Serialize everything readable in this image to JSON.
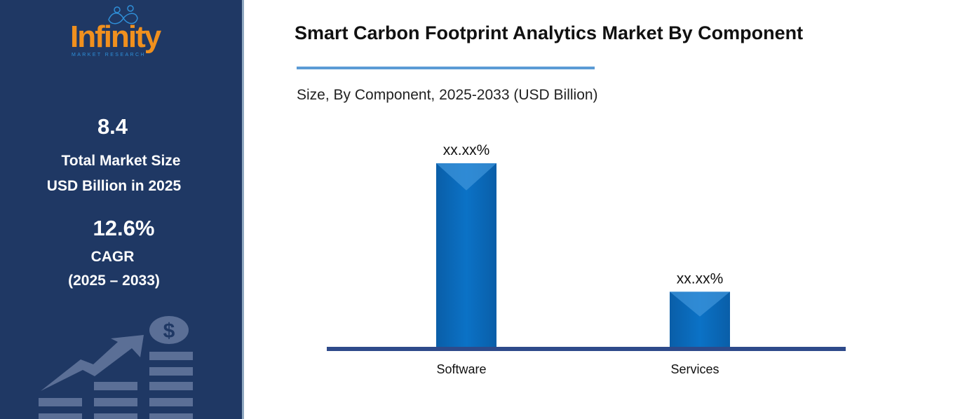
{
  "brand": {
    "name": "Infinity",
    "tagline": "MARKET RESEARCH",
    "primary_color": "#1f3864",
    "accent_color": "#f0901e"
  },
  "sidebar": {
    "market_size": "8.4",
    "market_size_label_1": "Total Market Size",
    "market_size_label_2": "USD Billion in 2025",
    "cagr": "12.6%",
    "cagr_label": "CAGR",
    "cagr_period": "(2025 – 2033)",
    "illustration": "growth-chart-dollar-icon"
  },
  "chart_data": {
    "type": "bar",
    "title": "Smart Carbon Footprint Analytics Market By Component",
    "subtitle": "Size, By Component, 2025-2033 (USD Billion)",
    "categories": [
      "Software",
      "Services"
    ],
    "data_labels": [
      "xx.xx%",
      "xx.xx%"
    ],
    "relative_values": [
      1.0,
      0.3
    ],
    "bar_color": "#0b6fc0",
    "axis_color": "#2e4a8a",
    "grid": false,
    "legend": "none"
  }
}
